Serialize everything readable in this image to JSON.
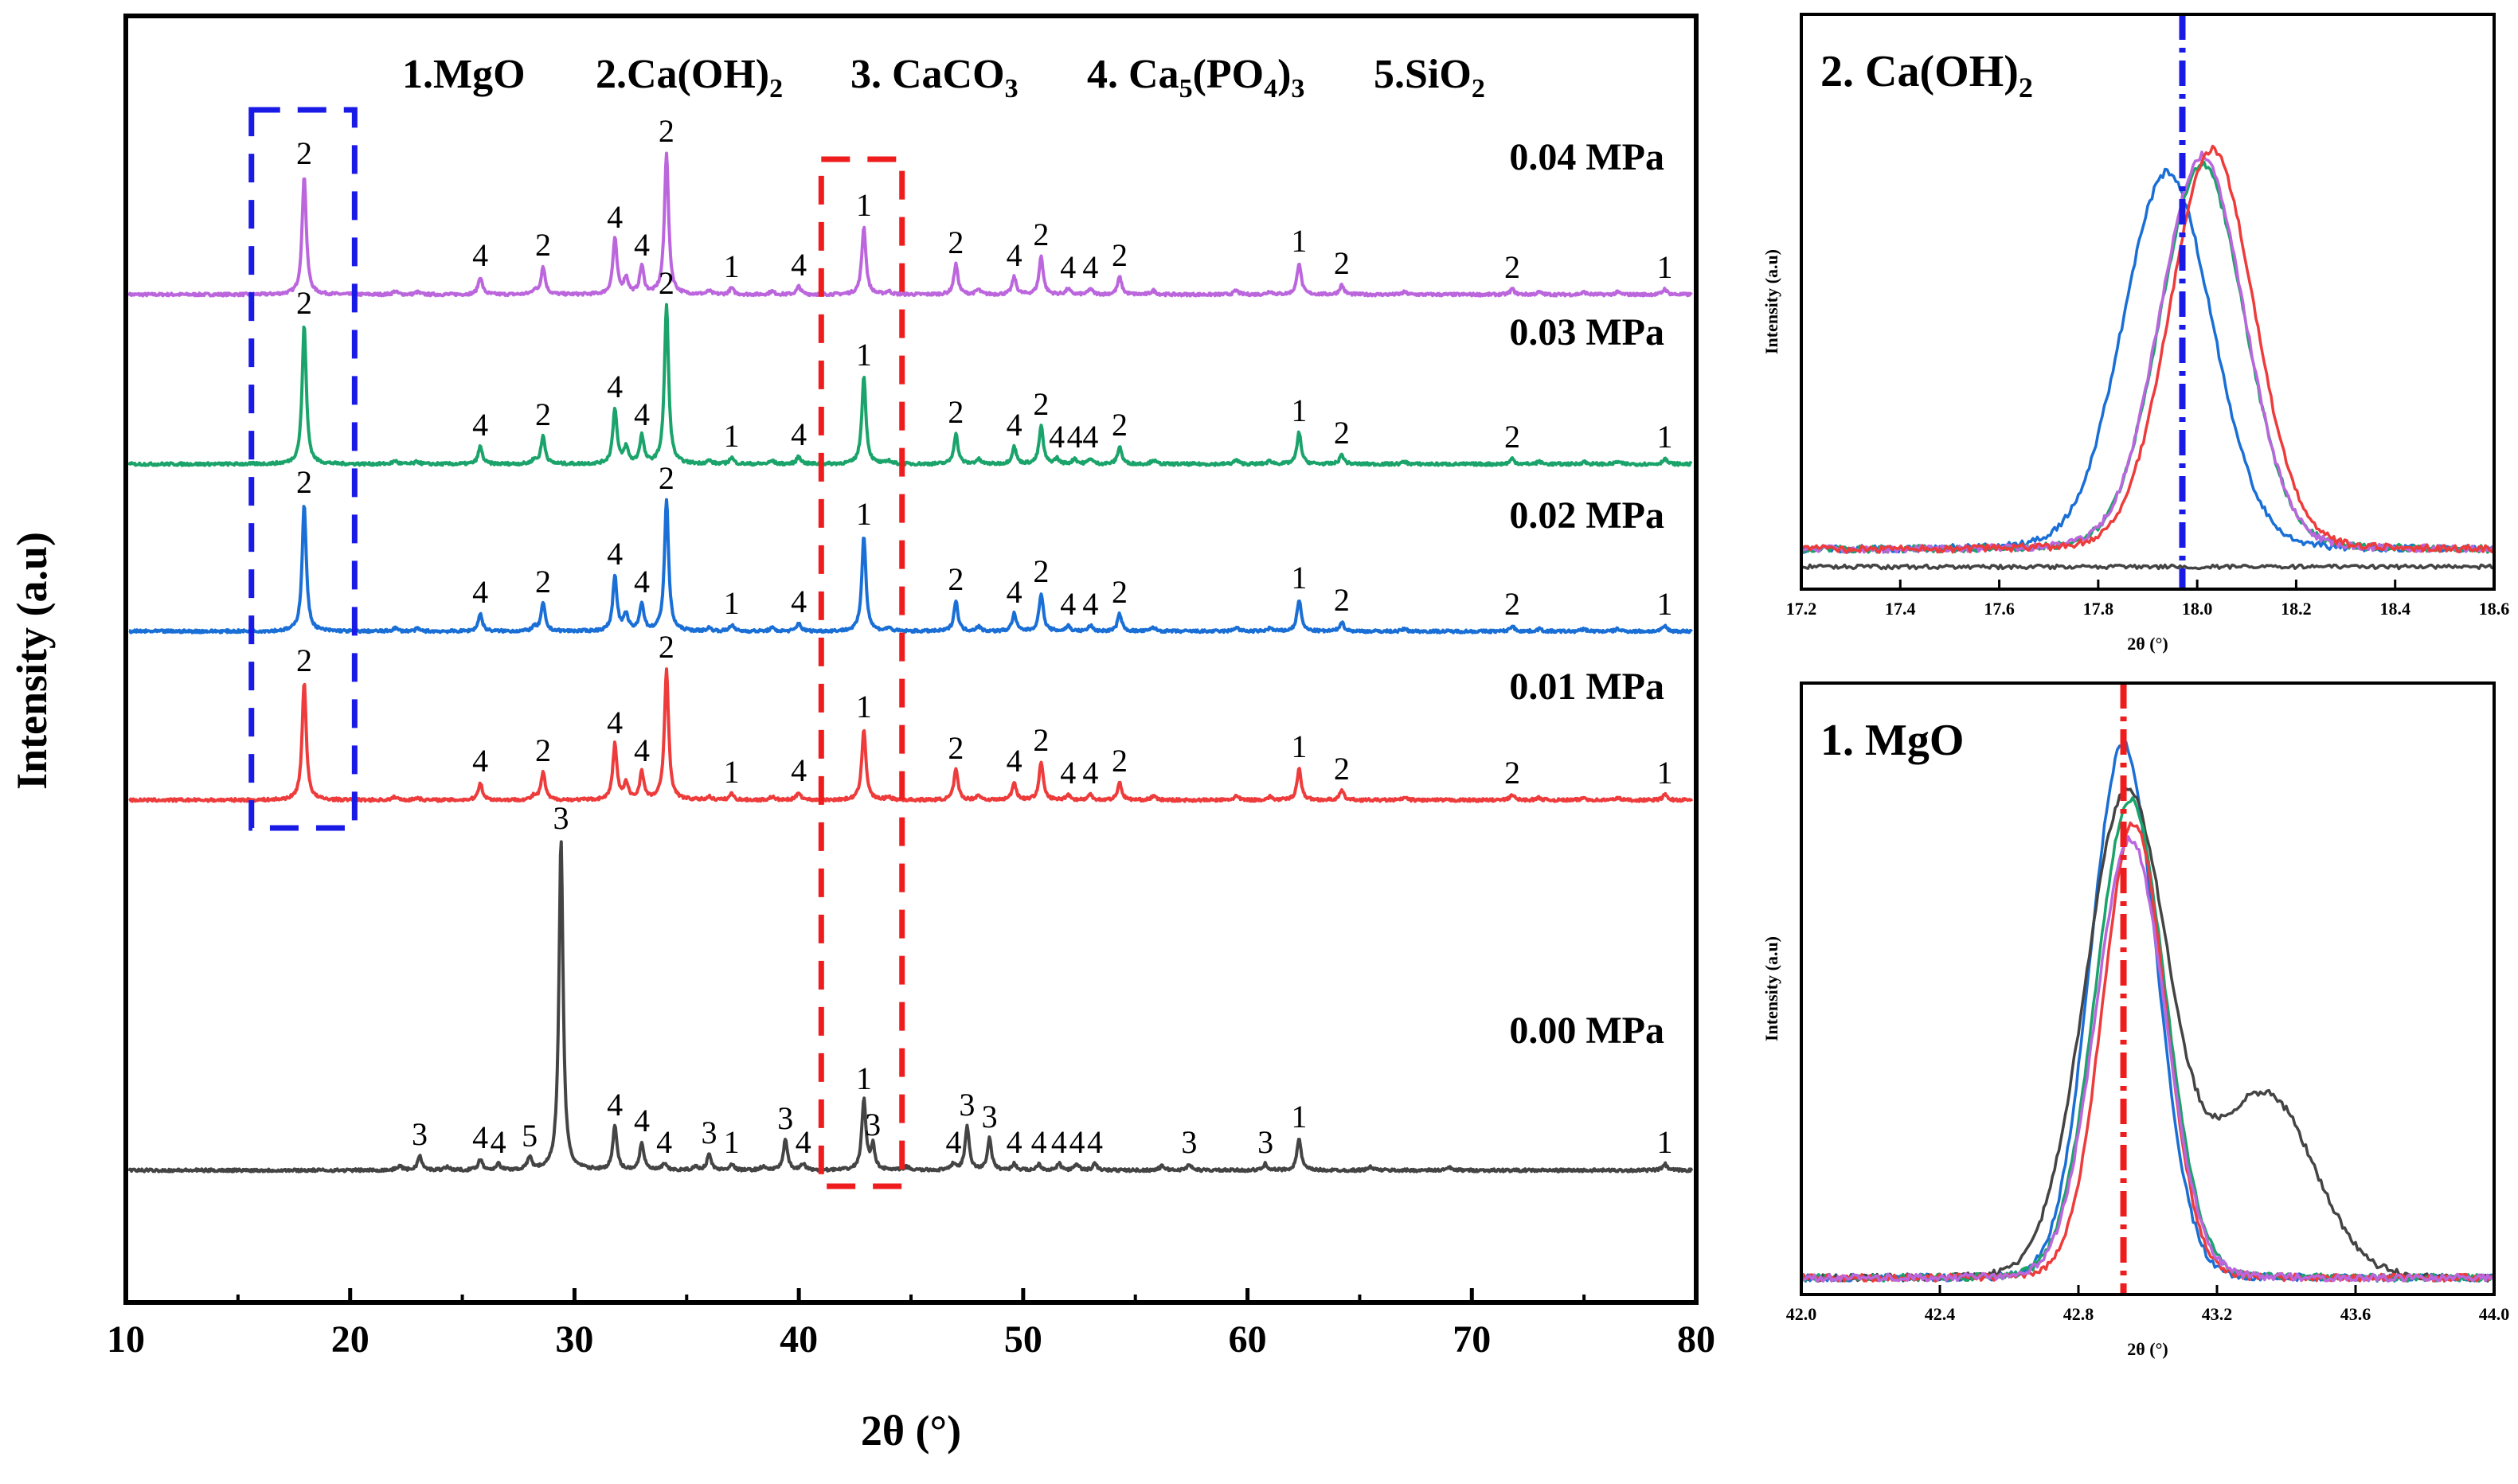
{
  "chart_data": [
    {
      "type": "line",
      "title": "",
      "xlabel": "2θ (°)",
      "ylabel": "Intensity (a.u)",
      "xlim": [
        10,
        80
      ],
      "xticks": [
        "10",
        "20",
        "30",
        "40",
        "50",
        "60",
        "70",
        "80"
      ],
      "legend_header": [
        {
          "n": "1.",
          "base": "MgO",
          "sub": ""
        },
        {
          "n": "2.",
          "base": "Ca(OH)",
          "sub": "2"
        },
        {
          "n": "3. ",
          "base": "CaCO",
          "sub": "3"
        },
        {
          "n": "4. ",
          "base": "Ca",
          "sub": "5",
          "post": "(PO",
          "sub2": "4",
          "post2": ")",
          "sub3": "3"
        },
        {
          "n": "5.",
          "base": "SiO",
          "sub": "2"
        }
      ],
      "series": [
        {
          "name": "0.04 MPa",
          "color": "#bb66dd",
          "peaks": [
            [
              17.95,
              2
            ],
            [
              25.8,
              4
            ],
            [
              28.6,
              2
            ],
            [
              31.8,
              4
            ],
            [
              33.0,
              4
            ],
            [
              34.1,
              2
            ],
            [
              37.0,
              1
            ],
            [
              40.0,
              4
            ],
            [
              42.9,
              1
            ],
            [
              47.0,
              2
            ],
            [
              49.6,
              4
            ],
            [
              50.8,
              2
            ],
            [
              52.0,
              4
            ],
            [
              53.0,
              4
            ],
            [
              54.3,
              2
            ],
            [
              62.3,
              1
            ],
            [
              64.2,
              2
            ],
            [
              71.8,
              2
            ],
            [
              78.6,
              1
            ]
          ]
        },
        {
          "name": "0.03 MPa",
          "color": "#1aa36a",
          "peaks": [
            [
              17.95,
              2
            ],
            [
              25.8,
              4
            ],
            [
              28.6,
              2
            ],
            [
              31.8,
              4
            ],
            [
              33.0,
              4
            ],
            [
              34.1,
              2
            ],
            [
              37.0,
              1
            ],
            [
              40.0,
              4
            ],
            [
              42.9,
              1
            ],
            [
              47.0,
              2
            ],
            [
              49.6,
              4
            ],
            [
              50.8,
              2
            ],
            [
              51.5,
              4
            ],
            [
              52.3,
              4
            ],
            [
              53.0,
              4
            ],
            [
              54.3,
              2
            ],
            [
              62.3,
              1
            ],
            [
              64.2,
              2
            ],
            [
              71.8,
              2
            ],
            [
              78.6,
              1
            ]
          ]
        },
        {
          "name": "0.02 MPa",
          "color": "#1a6fd6",
          "peaks": [
            [
              17.95,
              2
            ],
            [
              25.8,
              4
            ],
            [
              28.6,
              2
            ],
            [
              31.8,
              4
            ],
            [
              33.0,
              4
            ],
            [
              34.1,
              2
            ],
            [
              37.0,
              1
            ],
            [
              40.0,
              4
            ],
            [
              42.9,
              1
            ],
            [
              47.0,
              2
            ],
            [
              49.6,
              4
            ],
            [
              50.8,
              2
            ],
            [
              52.0,
              4
            ],
            [
              53.0,
              4
            ],
            [
              54.3,
              2
            ],
            [
              62.3,
              1
            ],
            [
              64.2,
              2
            ],
            [
              71.8,
              2
            ],
            [
              78.6,
              1
            ]
          ]
        },
        {
          "name": "0.01 MPa",
          "color": "#ee3b3b",
          "peaks": [
            [
              17.95,
              2
            ],
            [
              25.8,
              4
            ],
            [
              28.6,
              2
            ],
            [
              31.8,
              4
            ],
            [
              33.0,
              4
            ],
            [
              34.1,
              2
            ],
            [
              37.0,
              1
            ],
            [
              40.0,
              4
            ],
            [
              42.9,
              1
            ],
            [
              47.0,
              2
            ],
            [
              49.6,
              4
            ],
            [
              50.8,
              2
            ],
            [
              52.0,
              4
            ],
            [
              53.0,
              4
            ],
            [
              54.3,
              2
            ],
            [
              62.3,
              1
            ],
            [
              64.2,
              2
            ],
            [
              71.8,
              2
            ],
            [
              78.6,
              1
            ]
          ]
        },
        {
          "name": "0.00 MPa",
          "color": "#444444",
          "peaks": [
            [
              23.1,
              3
            ],
            [
              25.8,
              4
            ],
            [
              26.6,
              4
            ],
            [
              28.0,
              5
            ],
            [
              29.4,
              3
            ],
            [
              31.8,
              4
            ],
            [
              33.0,
              4
            ],
            [
              34.0,
              4
            ],
            [
              36.0,
              3
            ],
            [
              37.0,
              1
            ],
            [
              39.4,
              3
            ],
            [
              40.2,
              4
            ],
            [
              42.9,
              1
            ],
            [
              43.3,
              3
            ],
            [
              46.9,
              4
            ],
            [
              47.5,
              3
            ],
            [
              48.5,
              3
            ],
            [
              49.6,
              4
            ],
            [
              50.7,
              4
            ],
            [
              51.6,
              4
            ],
            [
              52.4,
              4
            ],
            [
              53.2,
              4
            ],
            [
              57.4,
              3
            ],
            [
              60.8,
              3
            ],
            [
              62.3,
              1
            ],
            [
              78.6,
              1
            ]
          ]
        }
      ]
    },
    {
      "type": "line",
      "title": "2. Ca(OH)₂",
      "title_base": "2. Ca(OH)",
      "title_sub": "2",
      "xlabel": "2θ (°)",
      "ylabel": "Intensity (a.u)",
      "xlim": [
        17.2,
        18.6
      ],
      "xticks": [
        "17.2",
        "17.4",
        "17.6",
        "17.8",
        "18.0",
        "18.2",
        "18.4",
        "18.6"
      ],
      "reference_line": 17.97,
      "series": [
        {
          "name": "0.02 MPa",
          "color": "#1a6fd6",
          "center": 17.94
        },
        {
          "name": "0.03 MPa",
          "color": "#1aa36a",
          "center": 18.01
        },
        {
          "name": "0.04 MPa",
          "color": "#bb66dd",
          "center": 18.01
        },
        {
          "name": "0.01 MPa",
          "color": "#ee3b3b",
          "center": 18.03
        },
        {
          "name": "0.00 MPa",
          "color": "#444444",
          "center": null
        }
      ]
    },
    {
      "type": "line",
      "title": "1. MgO",
      "xlabel": "2θ (°)",
      "ylabel": "Intensity (a.u)",
      "xlim": [
        42.0,
        44.0
      ],
      "xticks": [
        "42.0",
        "42.4",
        "42.8",
        "43.2",
        "43.6",
        "44.0"
      ],
      "reference_line": 42.93,
      "series": [
        {
          "name": "0.02 MPa",
          "color": "#1a6fd6",
          "center": 42.93
        },
        {
          "name": "0.00 MPa",
          "color": "#444444",
          "center": 42.94,
          "shoulder": 43.34
        },
        {
          "name": "0.03 MPa",
          "color": "#1aa36a",
          "center": 42.95
        },
        {
          "name": "0.01 MPa",
          "color": "#ee3b3b",
          "center": 42.96
        },
        {
          "name": "0.04 MPa",
          "color": "#bb66dd",
          "center": 42.95
        }
      ]
    }
  ]
}
